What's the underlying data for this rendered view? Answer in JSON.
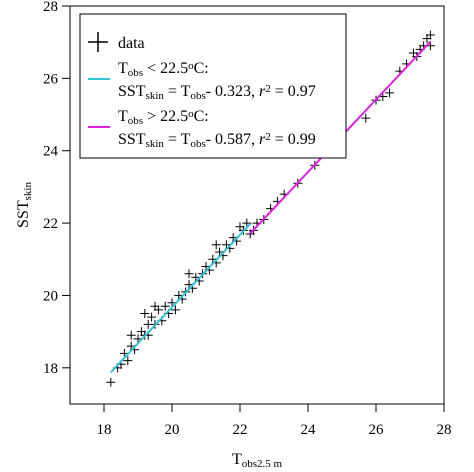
{
  "chart_data": {
    "type": "scatter",
    "x_label": [
      {
        "text": "T"
      },
      {
        "text": "obs2.5 m",
        "style": "sub"
      }
    ],
    "y_label": [
      {
        "text": "SST"
      },
      {
        "text": "skin",
        "style": "sub"
      }
    ],
    "xlim": [
      17,
      28
    ],
    "ylim": [
      17,
      28
    ],
    "xticks": [
      18,
      20,
      22,
      24,
      26,
      28
    ],
    "yticks": [
      18,
      20,
      22,
      24,
      26,
      28
    ],
    "legend_position": "upper left",
    "series": [
      {
        "name": [
          {
            "text": "data"
          }
        ],
        "kind": "scatter",
        "marker": "+",
        "color": "#000000",
        "x": [
          18.2,
          18.4,
          18.5,
          18.6,
          18.7,
          18.8,
          18.8,
          18.9,
          19.0,
          19.1,
          19.2,
          19.2,
          19.3,
          19.3,
          19.4,
          19.5,
          19.5,
          19.6,
          19.7,
          19.8,
          19.9,
          20.0,
          20.1,
          20.2,
          20.3,
          20.4,
          20.5,
          20.5,
          20.6,
          20.7,
          20.8,
          20.9,
          21.0,
          21.1,
          21.2,
          21.3,
          21.3,
          21.4,
          21.5,
          21.6,
          21.7,
          21.8,
          21.9,
          22.0,
          22.1,
          22.2,
          22.3,
          22.4,
          22.5,
          22.7,
          22.9,
          23.1,
          23.3,
          23.7,
          24.2,
          24.9,
          25.7,
          26.0,
          26.2,
          26.4,
          26.7,
          26.9,
          27.1,
          27.2,
          27.3,
          27.4,
          27.5,
          27.6,
          27.6
        ],
        "values": [
          17.6,
          18.0,
          18.1,
          18.4,
          18.2,
          18.6,
          18.9,
          18.5,
          18.8,
          19.0,
          18.9,
          19.5,
          19.2,
          18.9,
          19.4,
          19.2,
          19.7,
          19.6,
          19.3,
          19.7,
          19.5,
          19.8,
          19.6,
          20.0,
          19.9,
          20.1,
          20.3,
          20.6,
          20.2,
          20.5,
          20.4,
          20.6,
          20.8,
          20.7,
          21.0,
          20.9,
          21.4,
          21.2,
          21.1,
          21.4,
          21.3,
          21.6,
          21.5,
          21.9,
          21.8,
          22.0,
          21.7,
          21.8,
          22.0,
          22.1,
          22.4,
          22.6,
          22.8,
          23.1,
          23.6,
          24.2,
          24.9,
          25.4,
          25.5,
          25.6,
          26.2,
          26.4,
          26.7,
          26.6,
          26.8,
          26.9,
          27.1,
          27.2,
          26.9
        ]
      },
      {
        "name": [
          {
            "text": "T"
          },
          {
            "text": "obs",
            "style": "sub"
          },
          {
            "text": " < 22.5"
          },
          {
            "text": "o",
            "style": "sup"
          },
          {
            "text": "C:"
          }
        ],
        "equation": [
          {
            "text": "SST"
          },
          {
            "text": "skin",
            "style": "sub"
          },
          {
            "text": " = T"
          },
          {
            "text": "obs",
            "style": "sub"
          },
          {
            "text": "- 0.323, "
          },
          {
            "text": "r",
            "style": "italic"
          },
          {
            "text": "2",
            "style": "sup"
          },
          {
            "text": " = 0.97"
          }
        ],
        "kind": "line",
        "color": "#33c4d8",
        "x": [
          18.2,
          22.3
        ],
        "values": [
          17.877,
          21.977
        ]
      },
      {
        "name": [
          {
            "text": "T"
          },
          {
            "text": "obs",
            "style": "sub"
          },
          {
            "text": " > 22.5"
          },
          {
            "text": "o",
            "style": "sup"
          },
          {
            "text": "C:"
          }
        ],
        "equation": [
          {
            "text": "SST"
          },
          {
            "text": "skin",
            "style": "sub"
          },
          {
            "text": " = T"
          },
          {
            "text": "obs",
            "style": "sub"
          },
          {
            "text": "- 0.587, "
          },
          {
            "text": "r",
            "style": "italic"
          },
          {
            "text": "2",
            "style": "sup"
          },
          {
            "text": " = 0.99"
          }
        ],
        "kind": "line",
        "color": "#dd22dd",
        "x": [
          22.3,
          27.6
        ],
        "values": [
          21.713,
          27.013
        ]
      }
    ]
  }
}
